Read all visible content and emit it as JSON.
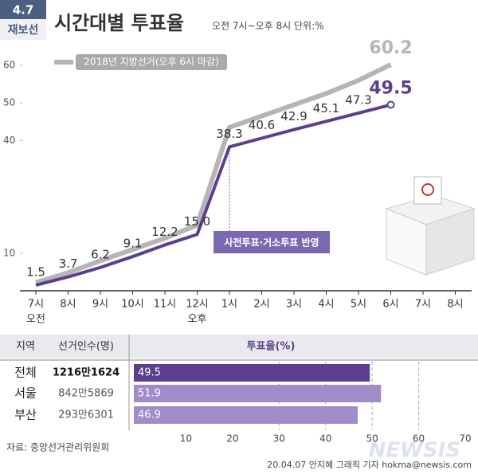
{
  "header": {
    "badge_top": "4.7",
    "badge_bottom": "재보선",
    "title": "시간대별 투표율",
    "subtitle": "오전 7시~오후 8시 단위:%"
  },
  "footer": {
    "source": "자료: 중앙선거관리위원회",
    "credit": "20.04.07 안지혜 그래픽 기자 hokma@newsis.com",
    "watermark": "NEWSIS"
  },
  "chart_data": [
    {
      "type": "line",
      "categories": [
        "7시",
        "8시",
        "9시",
        "10시",
        "11시",
        "12시",
        "1시",
        "2시",
        "3시",
        "4시",
        "5시",
        "6시",
        "7시",
        "8시"
      ],
      "category_sublabels": [
        "오전",
        null,
        null,
        null,
        null,
        "오후",
        null,
        null,
        null,
        null,
        null,
        null,
        null,
        null
      ],
      "ylim": [
        0,
        60
      ],
      "yticks": [
        10,
        40,
        50,
        60
      ],
      "annotation": "사전투표·거소투표 반영",
      "series": [
        {
          "name": "2018년 지방선거(오후 6시 마감)",
          "color": "#b5b5b5",
          "values": [
            2.2,
            4.8,
            8,
            11,
            14,
            17.5,
            43.5,
            46.5,
            49.5,
            52.5,
            56,
            60.2,
            null,
            null
          ],
          "value_labels": [
            null,
            null,
            null,
            null,
            null,
            null,
            null,
            null,
            null,
            null,
            null,
            "60.2",
            null,
            null
          ]
        },
        {
          "color": "#5b3f8c",
          "values": [
            1.5,
            3.7,
            6.2,
            9.1,
            12.2,
            15.0,
            38.3,
            40.6,
            42.9,
            45.1,
            47.3,
            49.5,
            null,
            null
          ],
          "value_labels": [
            "1.5",
            "3.7",
            "6.2",
            "9.1",
            "12.2",
            "15.0",
            "38.3",
            "40.6",
            "42.9",
            "45.1",
            "47.3",
            "49.5",
            null,
            null
          ]
        }
      ]
    },
    {
      "type": "bar",
      "orientation": "horizontal",
      "columns": [
        "지역",
        "선거인수(명)",
        "투표율(%)"
      ],
      "categories": [
        "전체",
        "서울",
        "부산"
      ],
      "voters": [
        "1216만1624",
        "842만5869",
        "293만6301"
      ],
      "values": [
        49.5,
        51.9,
        46.9
      ],
      "colors": [
        "#5b3f8c",
        "#a08cc8",
        "#a08cc8"
      ],
      "xlim": [
        0,
        70
      ],
      "xticks": [
        10,
        20,
        30,
        40,
        50,
        60,
        70
      ],
      "grid_ticks": [
        30,
        40,
        50,
        60
      ]
    }
  ]
}
